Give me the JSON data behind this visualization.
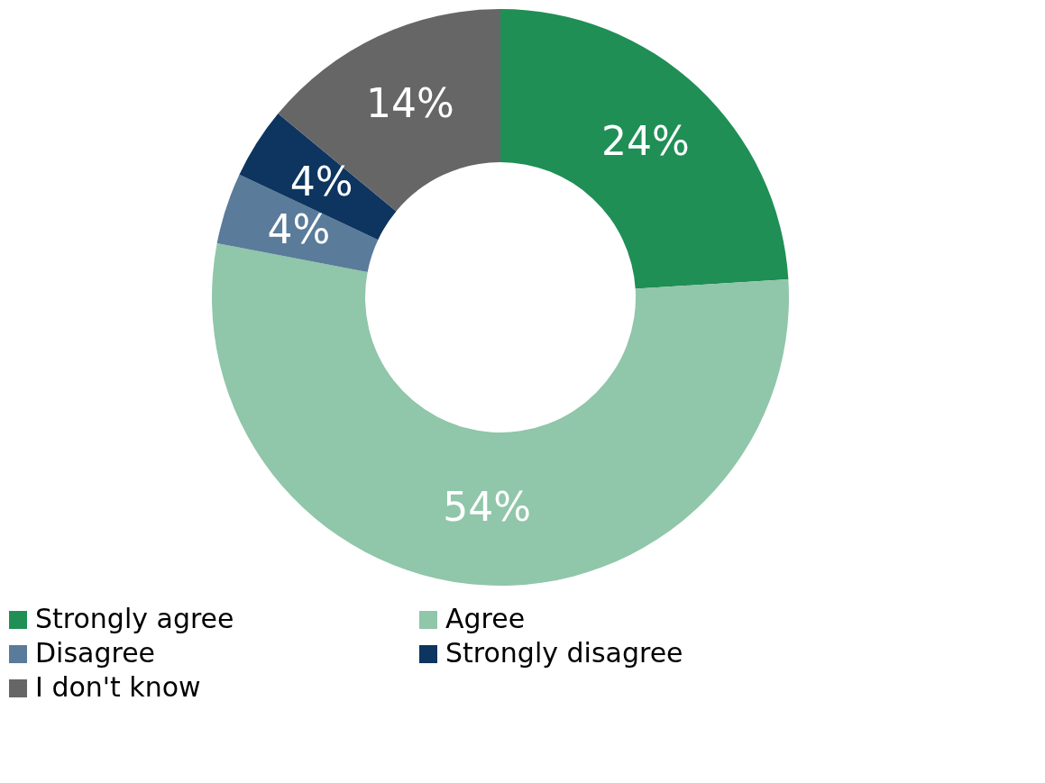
{
  "chart_data": {
    "type": "donut",
    "categories": [
      "Strongly agree",
      "Agree",
      "Disagree",
      "Strongly disagree",
      "I don't know"
    ],
    "values": [
      24,
      54,
      4,
      4,
      14
    ],
    "colors": [
      "#1f8f55",
      "#90c6a9",
      "#5a7b9a",
      "#0d3560",
      "#666666"
    ],
    "value_labels": [
      "24%",
      "54%",
      "4%",
      "4%",
      "14%"
    ],
    "legend": "bottom"
  }
}
